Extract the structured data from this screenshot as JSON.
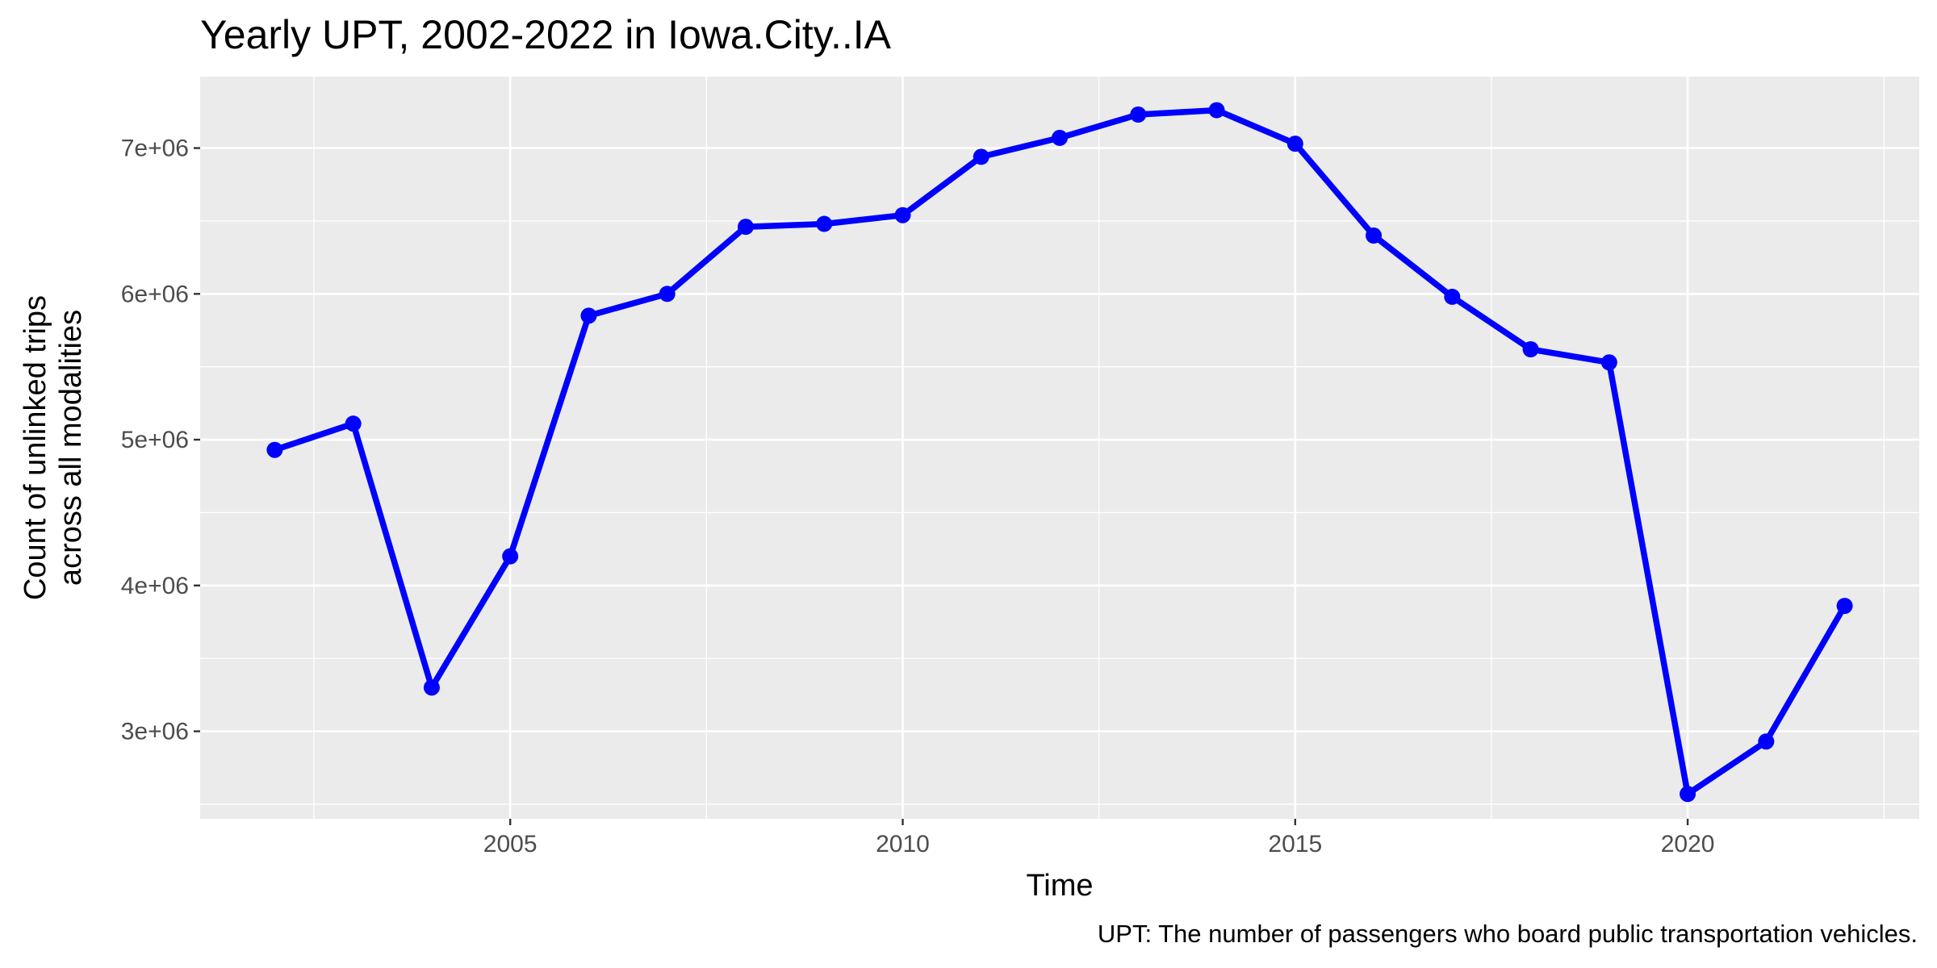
{
  "chart_data": {
    "type": "line",
    "title": "Yearly UPT, 2002-2022 in Iowa.City..IA",
    "xlabel": "Time",
    "ylabel_lines": [
      "Count of unlinked trips",
      "across all modalities"
    ],
    "caption": "UPT: The number of passengers who board public transportation vehicles.",
    "x": [
      2002,
      2003,
      2004,
      2005,
      2006,
      2007,
      2008,
      2009,
      2010,
      2011,
      2012,
      2013,
      2014,
      2015,
      2016,
      2017,
      2018,
      2019,
      2020,
      2021,
      2022
    ],
    "series": [
      {
        "color": "#0000ff",
        "values": [
          4930000,
          5110000,
          3300000,
          4200000,
          5850000,
          6000000,
          6460000,
          6480000,
          6540000,
          6940000,
          7070000,
          7230000,
          7260000,
          7030000,
          6400000,
          5980000,
          5620000,
          5530000,
          2570000,
          2930000,
          3860000
        ]
      }
    ],
    "xlim": [
      2001.05,
      2022.95
    ],
    "ylim": [
      2400000,
      7490000
    ],
    "x_ticks": [
      2005,
      2010,
      2015,
      2020
    ],
    "x_tick_labels": [
      "2005",
      "2010",
      "2015",
      "2020"
    ],
    "y_ticks": [
      3000000,
      4000000,
      5000000,
      6000000,
      7000000
    ],
    "y_tick_labels": [
      "3e+06",
      "4e+06",
      "5e+06",
      "6e+06",
      "7e+06"
    ],
    "grid": true,
    "panel_color": "#ebebeb",
    "grid_color": "#ffffff"
  }
}
